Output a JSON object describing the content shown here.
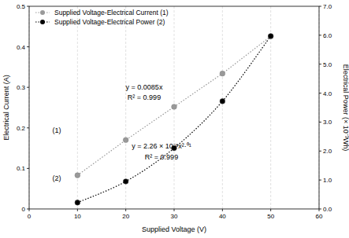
{
  "chart_data": {
    "type": "scatter",
    "x_label": "Supplied Voltage (V)",
    "y_label": "Electrical Current (A)",
    "y2_label": "Electrical Power (× 10⁻³Wh)",
    "x": [
      10,
      20,
      30,
      40,
      50
    ],
    "xlim": [
      0,
      60
    ],
    "xticks": [
      0,
      10,
      20,
      30,
      40,
      50,
      60
    ],
    "ylim": [
      0,
      0.5
    ],
    "yticks": [
      0,
      0.1,
      0.2,
      0.3,
      0.4,
      0.5
    ],
    "y2lim": [
      0,
      7
    ],
    "y2ticks": [
      {
        "value": 0,
        "label": "0.0"
      },
      {
        "value": 1,
        "label": "1.0"
      },
      {
        "value": 2,
        "label": "2.0"
      },
      {
        "value": 3,
        "label": "3.0"
      },
      {
        "value": 4,
        "label": "4.0"
      },
      {
        "value": 5,
        "label": "5.0"
      },
      {
        "value": 6,
        "label": "6.0"
      },
      {
        "value": 7,
        "label": "7.0"
      }
    ],
    "grid": true,
    "legend": "upper left",
    "series": [
      {
        "name": "Supplied Voltage-Electrical Current (1)",
        "color": "#999999",
        "marker": "circle",
        "line_style": "dotted",
        "values": [
          0.083,
          0.17,
          0.252,
          0.334,
          0.426
        ]
      },
      {
        "name": "Supplied Voltage-Electrical Power (2)",
        "color": "#000000",
        "marker": "circle",
        "line_style": "dotted",
        "axis": "y2",
        "values": [
          0.22,
          0.95,
          2.1,
          3.72,
          5.97
        ]
      }
    ],
    "annotations": [
      "y = 0.0085x",
      "R² = 0.999",
      "y = 2.26 × 10⁻⁶x²·⁰¹",
      "R² = 0.999",
      "(1)",
      "(2)"
    ]
  }
}
